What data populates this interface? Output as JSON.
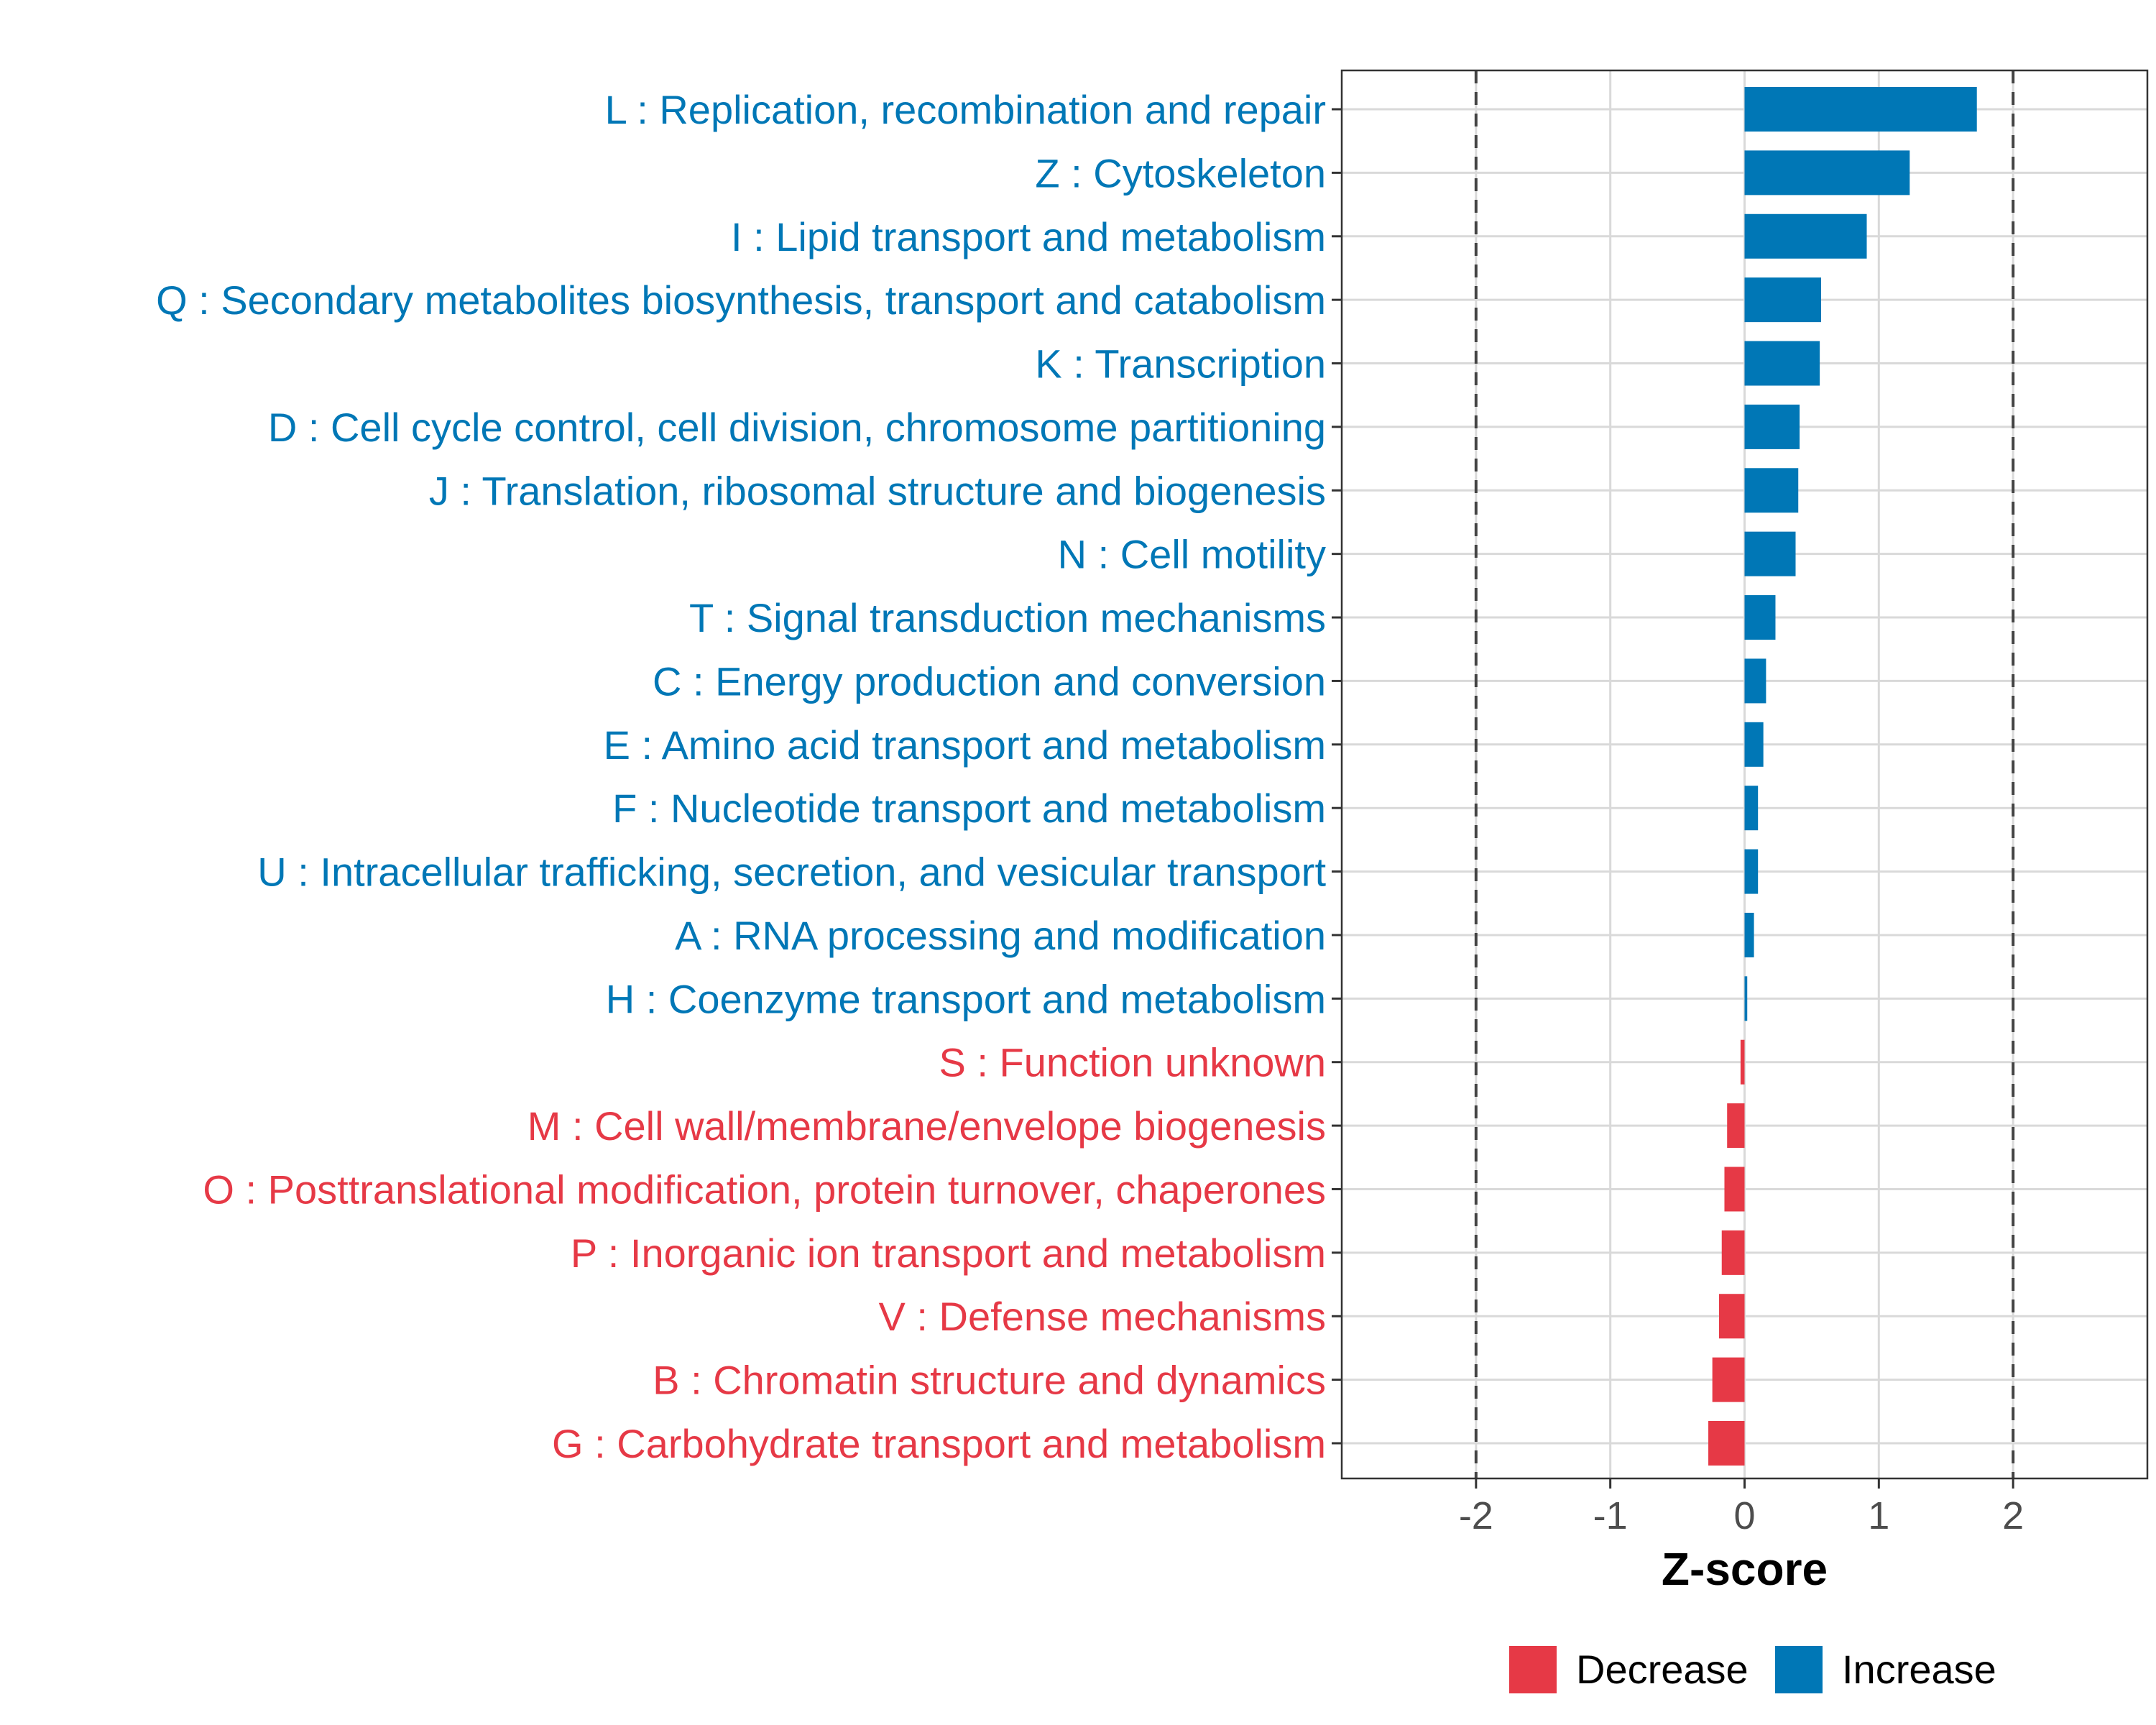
{
  "chart_data": {
    "type": "bar",
    "orientation": "horizontal",
    "xlabel": "Z-score",
    "xlim": [
      -3,
      3
    ],
    "xticks": [
      -2,
      -1,
      0,
      1,
      2
    ],
    "xtick_labels": [
      "-2",
      "-1",
      "0",
      "1",
      "2"
    ],
    "threshold_lines": [
      -2,
      2
    ],
    "grid": true,
    "legend_position": "bottom",
    "colors": {
      "Decrease": "#E63946",
      "Increase": "#0077B6"
    },
    "categories": [
      "L : Replication, recombination and repair",
      "Z : Cytoskeleton",
      "I : Lipid transport and metabolism",
      "Q : Secondary metabolites biosynthesis, transport and catabolism",
      "K : Transcription",
      "D : Cell cycle control, cell division, chromosome partitioning",
      "J : Translation, ribosomal structure and biogenesis",
      "N : Cell motility",
      "T : Signal transduction mechanisms",
      "C : Energy production and conversion",
      "E : Amino acid transport and metabolism",
      "F : Nucleotide transport and metabolism",
      "U : Intracellular trafficking, secretion, and vesicular transport",
      "A : RNA processing and modification",
      "H : Coenzyme transport and metabolism",
      "S : Function unknown",
      "M : Cell wall/membrane/envelope biogenesis",
      "O : Posttranslational modification, protein turnover, chaperones",
      "P : Inorganic ion transport and metabolism",
      "V : Defense mechanisms",
      "B : Chromatin structure and dynamics",
      "G : Carbohydrate transport and metabolism"
    ],
    "values": [
      1.73,
      1.23,
      0.91,
      0.57,
      0.56,
      0.41,
      0.4,
      0.38,
      0.23,
      0.16,
      0.14,
      0.1,
      0.1,
      0.07,
      0.02,
      -0.03,
      -0.13,
      -0.15,
      -0.17,
      -0.19,
      -0.24,
      -0.27
    ],
    "groups": [
      "Increase",
      "Increase",
      "Increase",
      "Increase",
      "Increase",
      "Increase",
      "Increase",
      "Increase",
      "Increase",
      "Increase",
      "Increase",
      "Increase",
      "Increase",
      "Increase",
      "Increase",
      "Decrease",
      "Decrease",
      "Decrease",
      "Decrease",
      "Decrease",
      "Decrease",
      "Decrease"
    ],
    "legend": [
      {
        "label": "Decrease",
        "color": "#E63946"
      },
      {
        "label": "Increase",
        "color": "#0077B6"
      }
    ]
  }
}
